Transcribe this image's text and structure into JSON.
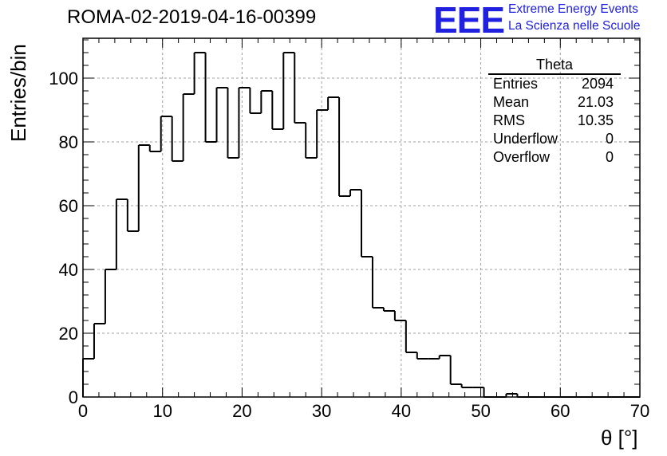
{
  "title": "ROMA-02-2019-04-16-00399",
  "logo": {
    "mark": "EEE",
    "line1": "Extreme Energy Events",
    "line2": "La Scienza nelle Scuole"
  },
  "stats": {
    "title": "Theta",
    "rows": [
      {
        "label": "Entries",
        "value": "2094"
      },
      {
        "label": "Mean",
        "value": "21.03"
      },
      {
        "label": "RMS",
        "value": "10.35"
      },
      {
        "label": "Underflow",
        "value": "0"
      },
      {
        "label": "Overflow",
        "value": "0"
      }
    ]
  },
  "chart_data": {
    "type": "histogram",
    "xlabel": "θ [°]",
    "ylabel": "Entries/bin",
    "xlim": [
      0,
      70
    ],
    "ylim": [
      0,
      112.5
    ],
    "xticks": [
      0,
      10,
      20,
      30,
      40,
      50,
      60,
      70
    ],
    "yticks": [
      0,
      20,
      40,
      60,
      80,
      100
    ],
    "grid": true,
    "bin_width": 1.4,
    "bin_edges_start": 0,
    "values": [
      12,
      23,
      40,
      62,
      52,
      79,
      77,
      88,
      74,
      95,
      108,
      80,
      97,
      75,
      97,
      89,
      96,
      84,
      108,
      86,
      75,
      90,
      94,
      63,
      65,
      44,
      28,
      27,
      24,
      14,
      12,
      12,
      13,
      4,
      3,
      3,
      0,
      0,
      1,
      0,
      0,
      0,
      0,
      0,
      0,
      0,
      0,
      0,
      0,
      0
    ]
  }
}
